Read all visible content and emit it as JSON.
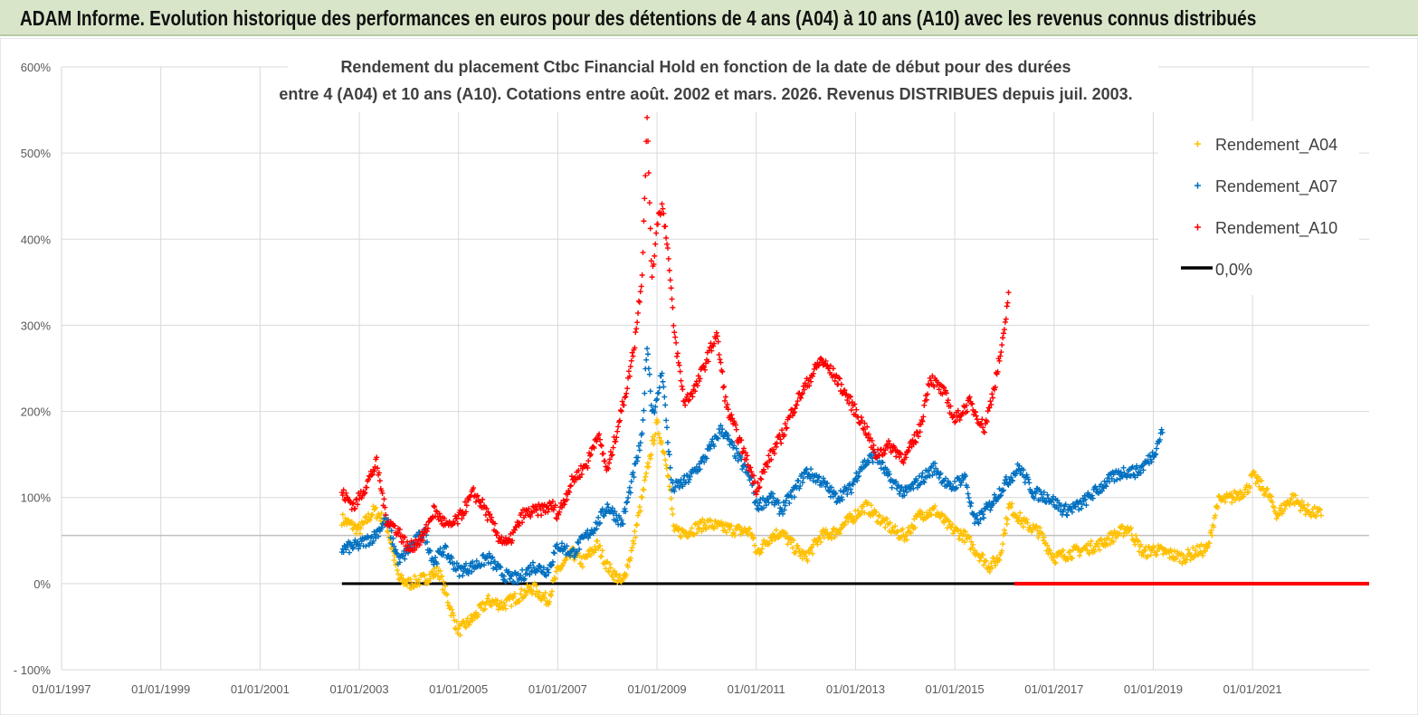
{
  "banner": {
    "title": "ADAM Informe. Evolution historique des performances en euros pour des détentions de 4 ans (A04) à 10 ans (A10) avec les revenus connus distribués"
  },
  "colors": {
    "a04": "#ffc000",
    "a07": "#0070c0",
    "a10": "#ff0000",
    "zero_line": "#000000",
    "grid": "#d9d9d9",
    "banner_bg": "#d8e5c8"
  },
  "chart_data": {
    "type": "scatter",
    "title_line1": "Rendement du placement Ctbc Financial Hold  en fonction de la date de début pour des durées",
    "title_line2": "entre 4 (A04) et 10 ans (A10). Cotations entre août. 2002 et mars. 2026. Revenus DISTRIBUES depuis juil. 2003.",
    "x_unit": "year",
    "xlim": [
      1997.0,
      2023.35
    ],
    "ylim": [
      -100,
      600
    ],
    "y_ticks": [
      -100,
      0,
      100,
      200,
      300,
      400,
      500,
      600
    ],
    "y_tick_labels": [
      "- 100%",
      "0%",
      "100%",
      "200%",
      "300%",
      "400%",
      "500%",
      "600%"
    ],
    "x_ticks": [
      1997,
      1999,
      2001,
      2003,
      2005,
      2007,
      2009,
      2011,
      2013,
      2015,
      2017,
      2019,
      2021
    ],
    "x_tick_labels": [
      "01/01/1997",
      "01/01/1999",
      "01/01/2001",
      "01/01/2003",
      "01/01/2005",
      "01/01/2007",
      "01/01/2009",
      "01/01/2011",
      "01/01/2013",
      "01/01/2015",
      "01/01/2017",
      "01/01/2019",
      "01/01/2021"
    ],
    "reference_line_y": 56,
    "legend_position": "top-right",
    "legend": [
      "Rendement_A04",
      "Rendement_A07",
      "Rendement_A10",
      "0,0%"
    ],
    "series": [
      {
        "name": "Rendement_A04",
        "x": [
          2002.65,
          2003.0,
          2003.3,
          2003.55,
          2003.8,
          2004.0,
          2004.3,
          2004.6,
          2004.9,
          2005.0,
          2005.3,
          2005.6,
          2005.9,
          2006.2,
          2006.5,
          2006.8,
          2007.0,
          2007.3,
          2007.5,
          2007.8,
          2008.0,
          2008.3,
          2008.5,
          2008.7,
          2008.9,
          2009.0,
          2009.2,
          2009.35,
          2009.6,
          2010.0,
          2010.3,
          2010.6,
          2010.9,
          2011.0,
          2011.3,
          2011.5,
          2011.8,
          2012.0,
          2012.3,
          2012.6,
          2012.9,
          2013.2,
          2013.5,
          2013.8,
          2014.0,
          2014.3,
          2014.6,
          2014.9,
          2015.2,
          2015.4,
          2015.7,
          2015.9,
          2016.1,
          2016.4,
          2016.7,
          2017.0,
          2017.3,
          2017.6,
          2017.9,
          2018.2,
          2018.5,
          2018.8,
          2019.0,
          2019.3,
          2019.6,
          2019.9,
          2020.1,
          2020.3,
          2020.6,
          2020.9,
          2021.0,
          2021.3,
          2021.5,
          2021.8,
          2022.1,
          2022.4
        ],
        "y": [
          75,
          62,
          85,
          70,
          5,
          0,
          5,
          15,
          -40,
          -55,
          -40,
          -20,
          -25,
          -15,
          -5,
          -20,
          15,
          35,
          25,
          45,
          20,
          0,
          40,
          100,
          160,
          185,
          140,
          60,
          60,
          70,
          65,
          62,
          60,
          35,
          55,
          60,
          40,
          30,
          55,
          60,
          75,
          90,
          75,
          60,
          55,
          80,
          85,
          65,
          55,
          40,
          20,
          30,
          90,
          70,
          60,
          30,
          35,
          40,
          45,
          55,
          65,
          35,
          40,
          35,
          30,
          38,
          40,
          95,
          100,
          110,
          125,
          105,
          80,
          100,
          85,
          80
        ]
      },
      {
        "name": "Rendement_A07",
        "x": [
          2002.65,
          2003.0,
          2003.3,
          2003.55,
          2003.8,
          2004.0,
          2004.3,
          2004.5,
          2004.7,
          2005.0,
          2005.3,
          2005.6,
          2005.9,
          2006.2,
          2006.5,
          2006.8,
          2007.0,
          2007.3,
          2007.5,
          2007.8,
          2008.0,
          2008.3,
          2008.5,
          2008.7,
          2008.8,
          2008.9,
          2009.0,
          2009.1,
          2009.3,
          2009.6,
          2009.9,
          2010.1,
          2010.3,
          2010.6,
          2010.9,
          2011.0,
          2011.3,
          2011.5,
          2011.8,
          2012.0,
          2012.3,
          2012.6,
          2012.9,
          2013.1,
          2013.4,
          2013.7,
          2014.0,
          2014.3,
          2014.6,
          2014.9,
          2015.2,
          2015.4,
          2015.7,
          2016.0,
          2016.3,
          2016.6,
          2016.9,
          2017.2,
          2017.5,
          2017.8,
          2018.1,
          2018.4,
          2018.7,
          2019.0,
          2019.2
        ],
        "y": [
          40,
          45,
          55,
          75,
          25,
          40,
          60,
          25,
          40,
          15,
          20,
          30,
          10,
          5,
          20,
          15,
          45,
          35,
          50,
          70,
          90,
          70,
          120,
          170,
          280,
          200,
          210,
          250,
          110,
          120,
          140,
          160,
          180,
          150,
          120,
          90,
          100,
          85,
          110,
          130,
          120,
          100,
          110,
          135,
          150,
          120,
          105,
          120,
          135,
          110,
          125,
          70,
          90,
          115,
          135,
          105,
          100,
          85,
          90,
          105,
          120,
          130,
          130,
          150,
          180
        ]
      },
      {
        "name": "Rendement_A10",
        "x": [
          2002.65,
          2002.9,
          2003.1,
          2003.35,
          2003.55,
          2003.8,
          2004.0,
          2004.3,
          2004.5,
          2004.8,
          2005.0,
          2005.3,
          2005.5,
          2005.8,
          2006.0,
          2006.3,
          2006.6,
          2006.9,
          2007.0,
          2007.3,
          2007.6,
          2007.8,
          2008.0,
          2008.2,
          2008.4,
          2008.55,
          2008.7,
          2008.8,
          2008.9,
          2009.0,
          2009.1,
          2009.2,
          2009.35,
          2009.55,
          2009.8,
          2010.0,
          2010.2,
          2010.4,
          2010.6,
          2010.9,
          2011.0,
          2011.3,
          2011.5,
          2011.8,
          2012.0,
          2012.3,
          2012.6,
          2012.9,
          2013.2,
          2013.4,
          2013.7,
          2014.0,
          2014.3,
          2014.5,
          2014.8,
          2015.0,
          2015.3,
          2015.6,
          2015.8,
          2016.0,
          2016.1
        ],
        "y": [
          105,
          90,
          110,
          140,
          75,
          60,
          40,
          55,
          85,
          65,
          75,
          105,
          90,
          55,
          45,
          80,
          85,
          90,
          80,
          120,
          140,
          175,
          130,
          180,
          230,
          280,
          360,
          540,
          350,
          420,
          440,
          400,
          290,
          210,
          230,
          260,
          290,
          205,
          175,
          130,
          110,
          150,
          170,
          210,
          230,
          260,
          240,
          210,
          180,
          150,
          160,
          145,
          180,
          240,
          220,
          190,
          210,
          180,
          230,
          290,
          350
        ]
      },
      {
        "name": "0,0%",
        "x": [
          2002.65,
          2023.35
        ],
        "y": [
          0,
          0
        ]
      }
    ]
  }
}
